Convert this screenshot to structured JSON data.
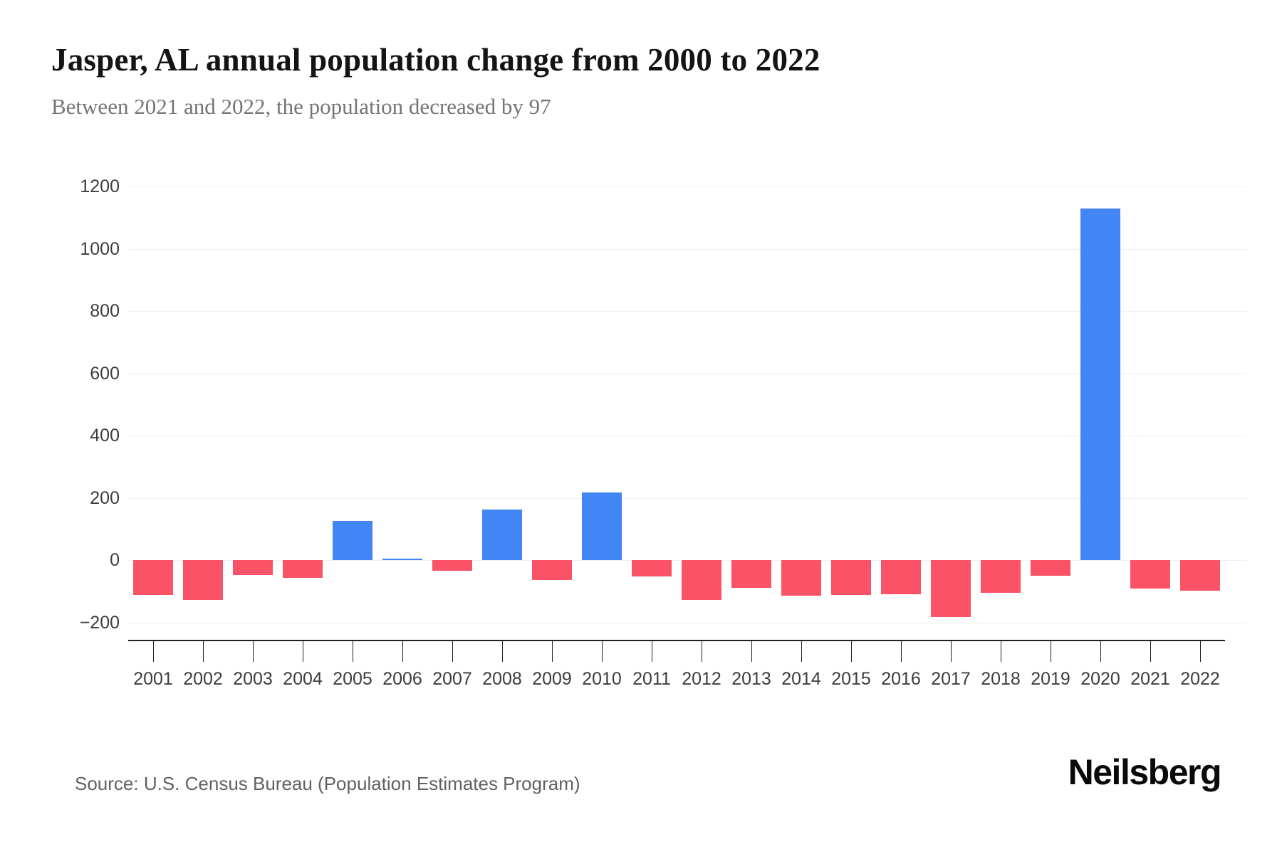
{
  "header": {
    "title": "Jasper, AL annual population change from 2000 to 2022",
    "subtitle": "Between 2021 and 2022, the population decreased by 97"
  },
  "footer": {
    "source": "Source: U.S. Census Bureau (Population Estimates Program)",
    "brand": "Neilsberg"
  },
  "chart_data": {
    "type": "bar",
    "title": "Jasper, AL annual population change from 2000 to 2022",
    "subtitle": "Between 2021 and 2022, the population decreased by 97",
    "categories": [
      "2001",
      "2002",
      "2003",
      "2004",
      "2005",
      "2006",
      "2007",
      "2008",
      "2009",
      "2010",
      "2011",
      "2012",
      "2013",
      "2014",
      "2015",
      "2016",
      "2017",
      "2018",
      "2019",
      "2020",
      "2021",
      "2022"
    ],
    "values": [
      -112,
      -127,
      -48,
      -56,
      127,
      5,
      -33,
      162,
      -62,
      218,
      -52,
      -127,
      -88,
      -113,
      -110,
      -109,
      -182,
      -103,
      -49,
      1130,
      -91,
      -97
    ],
    "xlabel": "",
    "ylabel": "",
    "ylim": [
      -200,
      1200
    ],
    "yticks": [
      1200,
      1000,
      800,
      600,
      400,
      200,
      0,
      -200
    ],
    "grid": "horizontal",
    "legend": "none",
    "colors": {
      "positive": "#4285F4",
      "negative": "#FA5266",
      "gridline": "#F0F0F0",
      "axis": "#212121",
      "labels": "#3D3D3D",
      "background": "#FFFFFF"
    }
  }
}
